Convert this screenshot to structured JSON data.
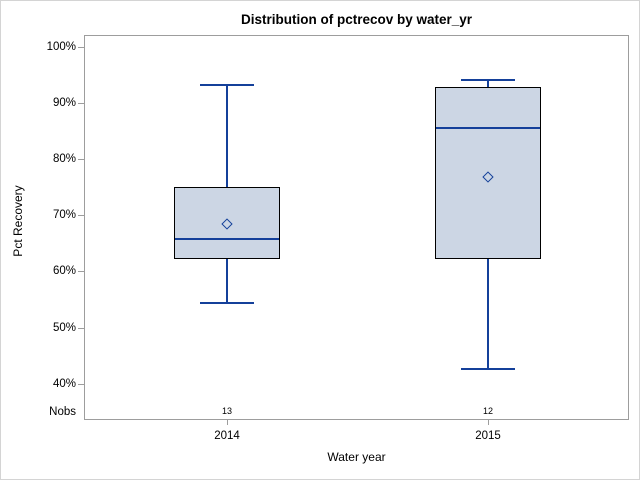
{
  "title": "Distribution of pctrecov by water_yr",
  "chart_data": {
    "type": "boxplot",
    "title": "Distribution of pctrecov by water_yr",
    "xlabel": "Water year",
    "ylabel": "Pct Recovery",
    "nobs_label": "Nobs",
    "y_ticks": [
      100,
      90,
      80,
      70,
      60,
      50,
      40
    ],
    "y_tick_labels": [
      "100%",
      "90%",
      "80%",
      "70%",
      "60%",
      "50%",
      "40%"
    ],
    "ylim": [
      40,
      100
    ],
    "y_format": "percent",
    "grid": false,
    "legend": "none",
    "categories": [
      "2014",
      "2015"
    ],
    "groups": [
      {
        "category": "2014",
        "nobs": "13",
        "whisker_low": 54.3,
        "q1": 62.2,
        "median": 65.7,
        "mean": 68.5,
        "q3": 75.1,
        "whisker_high": 93.2
      },
      {
        "category": "2015",
        "nobs": "12",
        "whisker_low": 42.6,
        "q1": 62.2,
        "median": 85.6,
        "mean": 76.9,
        "q3": 92.8,
        "whisker_high": 94.1
      }
    ],
    "colors": {
      "box_fill": "#ccd6e4",
      "box_border": "#000000",
      "line": "#14409a",
      "frame": "#9d9d9d",
      "text": "#000000"
    }
  }
}
